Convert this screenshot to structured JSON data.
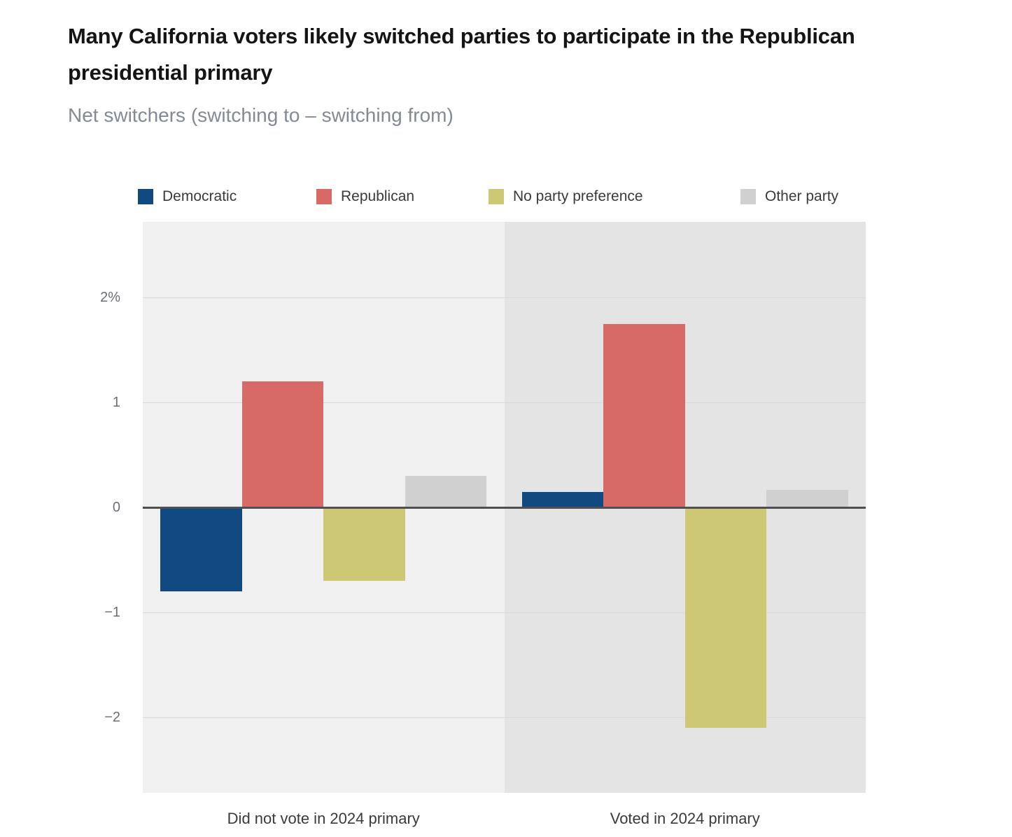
{
  "title": "Many California voters likely switched parties to participate in the Republican presidential primary",
  "subtitle": "Net switchers (switching to – switching from)",
  "legend": {
    "items": [
      {
        "label": "Democratic",
        "color": "#114a80"
      },
      {
        "label": "Republican",
        "color": "#d76a66"
      },
      {
        "label": "No party preference",
        "color": "#ccc873"
      },
      {
        "label": "Other party",
        "color": "#d0d0d0"
      }
    ]
  },
  "chart_data": {
    "type": "bar",
    "title": "Many California voters likely switched parties to participate in the Republican presidential primary",
    "subtitle": "Net switchers (switching to – switching from)",
    "categories": [
      "Did not vote in 2024 primary",
      "Voted in 2024 primary"
    ],
    "series": [
      {
        "name": "Democratic",
        "color": "#114a80",
        "values": [
          -0.8,
          0.15
        ]
      },
      {
        "name": "Republican",
        "color": "#d76a66",
        "values": [
          1.2,
          1.75
        ]
      },
      {
        "name": "No party preference",
        "color": "#ccc873",
        "values": [
          -0.7,
          -2.1
        ]
      },
      {
        "name": "Other party",
        "color": "#d0d0d0",
        "values": [
          0.3,
          0.17
        ]
      }
    ],
    "unit": "%",
    "ticks": [
      {
        "label": "2%",
        "value": 2
      },
      {
        "label": "1",
        "value": 1
      },
      {
        "label": "0",
        "value": 0
      },
      {
        "label": "−1",
        "value": -1
      },
      {
        "label": "−2",
        "value": -2
      }
    ],
    "ylim": [
      -2.72,
      2.72
    ],
    "grid": true,
    "legend_position": "top",
    "panel_background_colors": [
      "#f0f0f1",
      "#e4e4e4"
    ],
    "zero_line_color": "#4f4f51",
    "gridline_color": "#d9d9da"
  }
}
